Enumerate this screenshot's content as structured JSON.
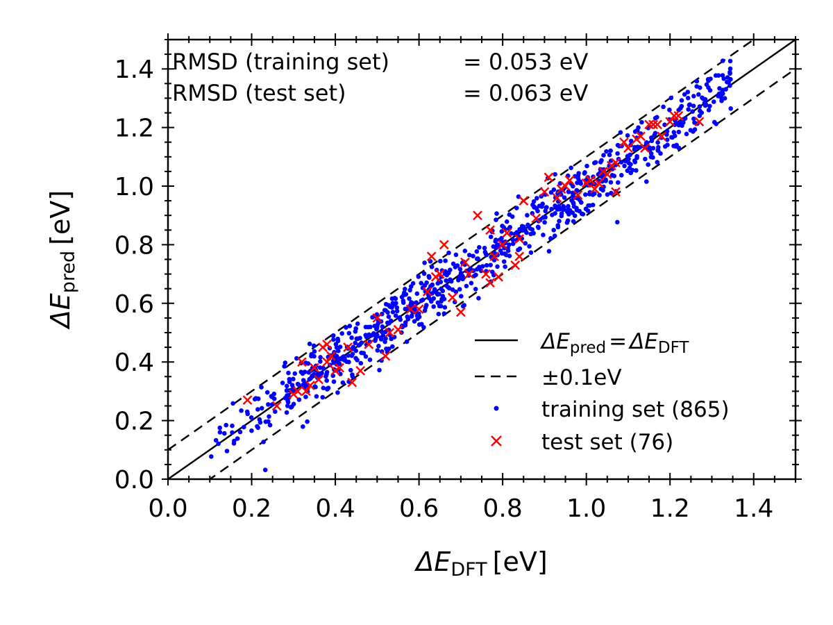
{
  "chart_data": {
    "type": "scatter",
    "xlabel": {
      "base": "ΔE",
      "sub": "DFT",
      "unit": "[eV]"
    },
    "ylabel": {
      "base": "ΔE",
      "sub": "pred",
      "unit": "[eV]"
    },
    "xlim": [
      0.0,
      1.5
    ],
    "ylim": [
      0.0,
      1.5
    ],
    "xticks": [
      "0.0",
      "0.2",
      "0.4",
      "0.6",
      "0.8",
      "1.0",
      "1.2",
      "1.4"
    ],
    "yticks": [
      "0.0",
      "0.2",
      "0.4",
      "0.6",
      "0.8",
      "1.0",
      "1.2",
      "1.4"
    ],
    "grid": false,
    "legend_position": "lower-right",
    "annotations": [
      {
        "label": "RMSD (training set)",
        "value": "= 0.053 eV"
      },
      {
        "label": "RMSD (test set)",
        "value": "= 0.063 eV"
      }
    ],
    "reference_lines": [
      {
        "name_base": "ΔE",
        "name_sub": "pred",
        "equals": "=",
        "name2_base": "ΔE",
        "name2_sub": "DFT",
        "offset": 0.0,
        "style": "solid"
      },
      {
        "name": "±0.1eV",
        "offset": 0.1,
        "style": "dashed"
      }
    ],
    "series": [
      {
        "name": "training set (865)",
        "marker": "dot",
        "color": "#0000ff",
        "count": 865,
        "line_slope": 0.985,
        "line_intercept": 0.012,
        "noise_sd": 0.05,
        "x_range": [
          0.1,
          1.4
        ]
      },
      {
        "name": "test set (76)",
        "marker": "x",
        "color": "#ff0000",
        "points": [
          [
            0.19,
            0.27
          ],
          [
            0.26,
            0.25
          ],
          [
            0.3,
            0.29
          ],
          [
            0.32,
            0.4
          ],
          [
            0.33,
            0.3
          ],
          [
            0.34,
            0.32
          ],
          [
            0.35,
            0.38
          ],
          [
            0.36,
            0.34
          ],
          [
            0.37,
            0.45
          ],
          [
            0.38,
            0.4
          ],
          [
            0.38,
            0.46
          ],
          [
            0.39,
            0.42
          ],
          [
            0.4,
            0.37
          ],
          [
            0.41,
            0.38
          ],
          [
            0.43,
            0.45
          ],
          [
            0.44,
            0.33
          ],
          [
            0.46,
            0.37
          ],
          [
            0.48,
            0.46
          ],
          [
            0.5,
            0.55
          ],
          [
            0.52,
            0.42
          ],
          [
            0.53,
            0.5
          ],
          [
            0.55,
            0.51
          ],
          [
            0.58,
            0.58
          ],
          [
            0.62,
            0.64
          ],
          [
            0.63,
            0.76
          ],
          [
            0.64,
            0.69
          ],
          [
            0.65,
            0.7
          ],
          [
            0.66,
            0.8
          ],
          [
            0.68,
            0.62
          ],
          [
            0.7,
            0.57
          ],
          [
            0.72,
            0.7
          ],
          [
            0.74,
            0.9
          ],
          [
            0.76,
            0.7
          ],
          [
            0.77,
            0.67
          ],
          [
            0.77,
            0.85
          ],
          [
            0.78,
            0.76
          ],
          [
            0.79,
            0.69
          ],
          [
            0.8,
            0.8
          ],
          [
            0.81,
            0.84
          ],
          [
            0.83,
            0.73
          ],
          [
            0.84,
            0.76
          ],
          [
            0.84,
            0.82
          ],
          [
            0.85,
            0.95
          ],
          [
            0.88,
            0.89
          ],
          [
            0.9,
            0.98
          ],
          [
            0.91,
            1.03
          ],
          [
            0.93,
            0.96
          ],
          [
            0.94,
            0.99
          ],
          [
            0.96,
            1.02
          ],
          [
            0.98,
            0.97
          ],
          [
            1.0,
            1.01
          ],
          [
            1.01,
            1.02
          ],
          [
            1.02,
            0.99
          ],
          [
            1.04,
            1.05
          ],
          [
            1.05,
            1.04
          ],
          [
            1.06,
            1.07
          ],
          [
            1.07,
            1.08
          ],
          [
            1.07,
            0.98
          ],
          [
            1.09,
            1.15
          ],
          [
            1.1,
            1.13
          ],
          [
            1.12,
            1.16
          ],
          [
            1.13,
            1.17
          ],
          [
            1.14,
            1.13
          ],
          [
            1.15,
            1.21
          ],
          [
            1.16,
            1.21
          ],
          [
            1.17,
            1.21
          ],
          [
            1.18,
            1.17
          ],
          [
            1.2,
            1.22
          ],
          [
            1.21,
            1.24
          ],
          [
            1.22,
            1.24
          ],
          [
            1.27,
            1.22
          ],
          [
            0.6,
            0.58
          ],
          [
            0.71,
            0.74
          ],
          [
            0.95,
            1.0
          ],
          [
            1.03,
            1.01
          ],
          [
            0.31,
            0.3
          ]
        ]
      }
    ]
  }
}
